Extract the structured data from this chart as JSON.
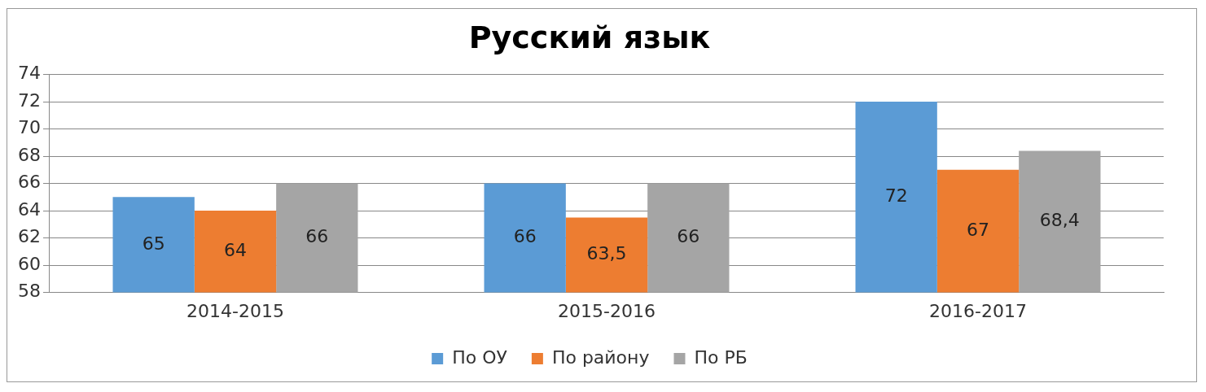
{
  "chart_data": {
    "type": "bar",
    "title": "Русский язык",
    "categories": [
      "2014-2015",
      "2015-2016",
      "2016-2017"
    ],
    "series": [
      {
        "name": "По ОУ",
        "color": "#5b9bd5",
        "values": [
          65,
          66,
          72
        ],
        "value_labels": [
          "65",
          "66",
          "72"
        ]
      },
      {
        "name": "По району",
        "color": "#ed7d31",
        "values": [
          64,
          63.5,
          67
        ],
        "value_labels": [
          "64",
          "63,5",
          "67"
        ]
      },
      {
        "name": "По РБ",
        "color": "#a5a5a5",
        "values": [
          66,
          66,
          68.4
        ],
        "value_labels": [
          "66",
          "66",
          "68,4"
        ]
      }
    ],
    "ylim": [
      58,
      74
    ],
    "yticks": [
      58,
      60,
      62,
      64,
      66,
      68,
      70,
      72,
      74
    ],
    "grid": "y",
    "legend": "bottom"
  }
}
